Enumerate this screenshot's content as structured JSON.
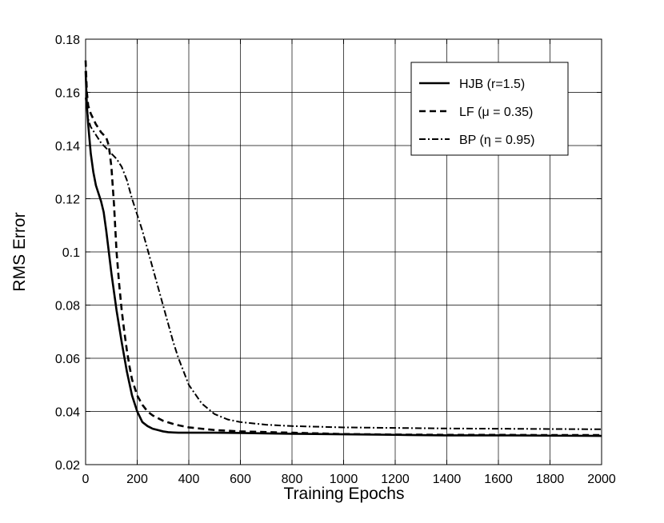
{
  "chart_data": {
    "type": "line",
    "title": "",
    "xlabel": "Training Epochs",
    "ylabel": "RMS Error",
    "xlim": [
      0,
      2000
    ],
    "ylim": [
      0.02,
      0.18
    ],
    "xticks": [
      0,
      200,
      400,
      600,
      800,
      1000,
      1200,
      1400,
      1600,
      1800,
      2000
    ],
    "xtick_labels": [
      "0",
      "200",
      "400",
      "600",
      "800",
      "1000",
      "1200",
      "1400",
      "1600",
      "1800",
      "2000"
    ],
    "yticks": [
      0.02,
      0.04,
      0.06,
      0.08,
      0.1,
      0.12,
      0.14,
      0.16,
      0.18
    ],
    "ytick_labels": [
      "0.02",
      "0.04",
      "0.06",
      "0.08",
      "0.1",
      "0.12",
      "0.14",
      "0.16",
      "0.18"
    ],
    "grid": true,
    "legend_position": "top-right",
    "series": [
      {
        "name": "HJB (r=1.5)",
        "style": "solid",
        "color": "#000000",
        "x": [
          0,
          5,
          10,
          20,
          30,
          40,
          50,
          60,
          70,
          80,
          90,
          100,
          120,
          140,
          160,
          180,
          200,
          220,
          240,
          260,
          280,
          300,
          320,
          340,
          360,
          400,
          500,
          600,
          800,
          1000,
          1200,
          1400,
          1600,
          1800,
          2000
        ],
        "y": [
          0.168,
          0.155,
          0.148,
          0.137,
          0.13,
          0.125,
          0.122,
          0.119,
          0.115,
          0.108,
          0.1,
          0.092,
          0.078,
          0.066,
          0.055,
          0.046,
          0.04,
          0.036,
          0.0345,
          0.0335,
          0.033,
          0.0325,
          0.0322,
          0.0321,
          0.032,
          0.032,
          0.032,
          0.0319,
          0.0316,
          0.0314,
          0.0312,
          0.031,
          0.031,
          0.0309,
          0.0308
        ]
      },
      {
        "name": "LF (μ = 0.35)",
        "style": "dashed",
        "color": "#000000",
        "x": [
          0,
          5,
          10,
          20,
          40,
          60,
          80,
          90,
          100,
          110,
          120,
          130,
          140,
          150,
          160,
          170,
          180,
          200,
          220,
          240,
          260,
          300,
          350,
          400,
          450,
          500,
          600,
          800,
          1000,
          1200,
          1400,
          1600,
          1800,
          2000
        ],
        "y": [
          0.172,
          0.16,
          0.155,
          0.152,
          0.148,
          0.145,
          0.143,
          0.14,
          0.132,
          0.118,
          0.1,
          0.088,
          0.078,
          0.07,
          0.063,
          0.057,
          0.052,
          0.046,
          0.0425,
          0.04,
          0.0385,
          0.0365,
          0.035,
          0.034,
          0.0335,
          0.033,
          0.0325,
          0.032,
          0.0315,
          0.0313,
          0.0312,
          0.0312,
          0.0311,
          0.0311
        ]
      },
      {
        "name": "BP (η = 0.95)",
        "style": "dashdot",
        "color": "#000000",
        "x": [
          0,
          10,
          20,
          40,
          60,
          80,
          100,
          120,
          140,
          160,
          180,
          200,
          220,
          240,
          260,
          280,
          300,
          320,
          340,
          360,
          380,
          400,
          450,
          500,
          550,
          600,
          700,
          800,
          1000,
          1200,
          1400,
          1600,
          1800,
          2000
        ],
        "y": [
          0.158,
          0.15,
          0.147,
          0.144,
          0.141,
          0.139,
          0.137,
          0.135,
          0.132,
          0.127,
          0.12,
          0.114,
          0.108,
          0.101,
          0.094,
          0.087,
          0.08,
          0.073,
          0.066,
          0.06,
          0.055,
          0.05,
          0.043,
          0.039,
          0.037,
          0.036,
          0.035,
          0.0345,
          0.034,
          0.0338,
          0.0336,
          0.0335,
          0.0334,
          0.0333
        ]
      }
    ]
  }
}
